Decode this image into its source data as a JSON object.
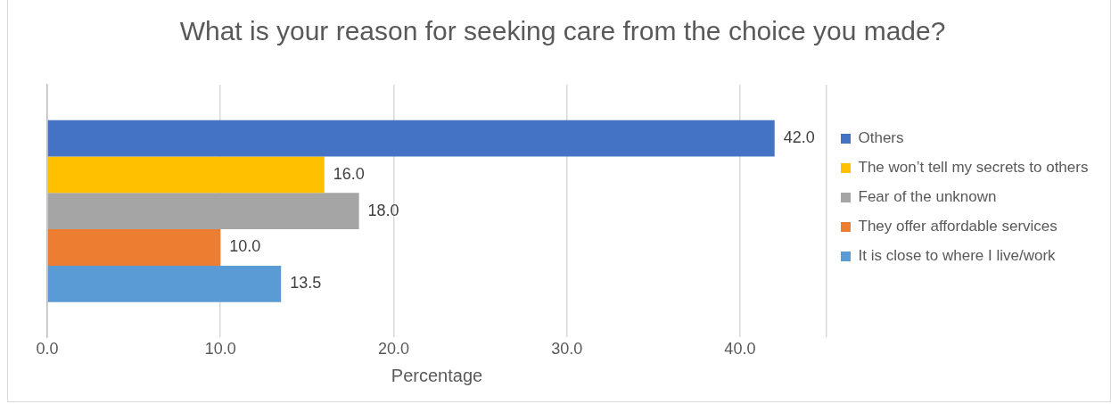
{
  "chart_data": {
    "type": "bar",
    "orientation": "horizontal",
    "title": "What is your reason for seeking care from the choice you made?",
    "xlabel": "Percentage",
    "categories": [
      null
    ],
    "series": [
      {
        "name": "Others",
        "color": "#4472c4",
        "values": [
          42.0
        ],
        "value_labels": [
          "42.0"
        ]
      },
      {
        "name": "The won’t tell my secrets to others",
        "color": "#ffc000",
        "values": [
          16.0
        ],
        "value_labels": [
          "16.0"
        ]
      },
      {
        "name": "Fear of the unknown",
        "color": "#a5a5a5",
        "values": [
          18.0
        ],
        "value_labels": [
          "18.0"
        ]
      },
      {
        "name": "They offer affordable services",
        "color": "#ed7d31",
        "values": [
          10.0
        ],
        "value_labels": [
          "10.0"
        ]
      },
      {
        "name": "It is close to where I live/work",
        "color": "#5b9bd5",
        "values": [
          13.5
        ],
        "value_labels": [
          "13.5"
        ]
      }
    ],
    "xlim": [
      0,
      45
    ],
    "xticks": [
      {
        "value": 0,
        "label": "0.0"
      },
      {
        "value": 10,
        "label": "10.0"
      },
      {
        "value": 20,
        "label": "20.0"
      },
      {
        "value": 30,
        "label": "30.0"
      },
      {
        "value": 40,
        "label": "40.0"
      },
      {
        "value": 45,
        "label": null
      }
    ],
    "grid": "x",
    "legend": "right"
  }
}
